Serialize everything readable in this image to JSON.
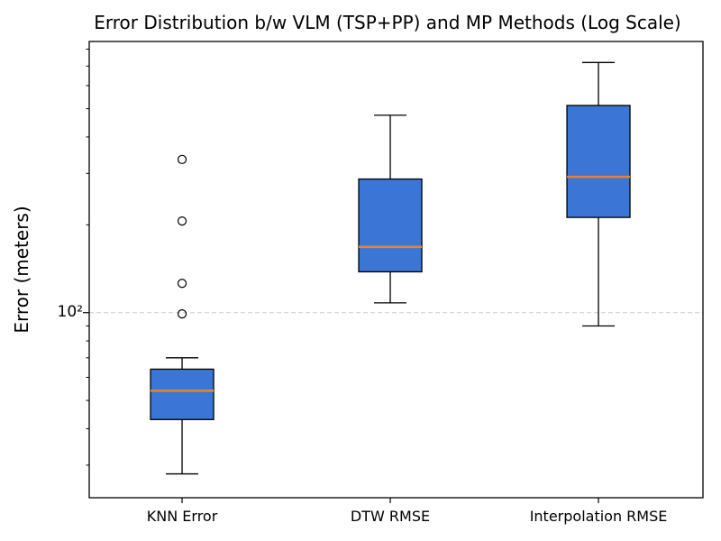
{
  "chart_data": {
    "type": "boxplot",
    "title": "Error Distribution b/w VLM (TSP+PP) and MP Methods (Log Scale)",
    "xlabel": "",
    "ylabel": "Error (meters)",
    "yscale": "log",
    "ylim": [
      23.2,
      850
    ],
    "grid": "dashed horizontal line at 100 only",
    "legend": "none",
    "categories": [
      "KNN Error",
      "DTW RMSE",
      "Interpolation RMSE"
    ],
    "y_axis": {
      "major_tick_label": "10²",
      "major_tick_value": 100,
      "minor_ticks": [
        30,
        40,
        50,
        60,
        70,
        80,
        90,
        200,
        300,
        400,
        500,
        600,
        700,
        800
      ],
      "gridline_value": 100
    },
    "series": [
      {
        "name": "KNN Error",
        "whisker_low": 28,
        "q1": 43,
        "median": 54,
        "q3": 64,
        "whisker_high": 70,
        "outliers": [
          99,
          126,
          206,
          335
        ]
      },
      {
        "name": "DTW RMSE",
        "whisker_low": 108,
        "q1": 138,
        "median": 168,
        "q3": 287,
        "whisker_high": 475,
        "outliers": []
      },
      {
        "name": "Interpolation RMSE",
        "whisker_low": 90,
        "q1": 212,
        "median": 292,
        "q3": 513,
        "whisker_high": 720,
        "outliers": []
      }
    ],
    "colors": {
      "box_fill": "#3b76d6",
      "box_edge": "#000000",
      "median": "#e0862e",
      "whisker": "#000000",
      "gridline": "#cccccc",
      "text": "#000000",
      "background": "#ffffff"
    }
  }
}
